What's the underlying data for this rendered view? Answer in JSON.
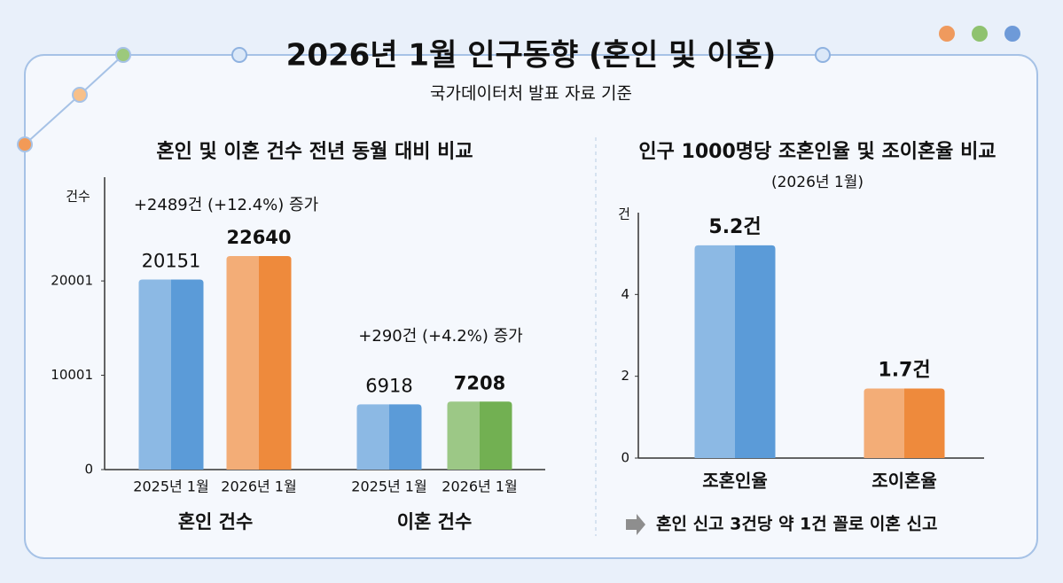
{
  "header": {
    "title": "2026년 1월 인구동향 (혼인 및 이혼)",
    "subtitle": "국가데이터처 발표 자료 기준"
  },
  "chart_data": [
    {
      "type": "bar",
      "title": "혼인 및 이혼 건수 전년 동월 대비 비교",
      "y_label": "건수",
      "categories": [
        "2025년 1월",
        "2026년 1월",
        "2025년 1월",
        "2026년 1월"
      ],
      "values": [
        20151,
        22640,
        6918,
        7208
      ],
      "colors": [
        "#5b9bd8",
        "#ee8a3c",
        "#5b9bd8",
        "#72b052"
      ],
      "groups": [
        "혼인 건수",
        "이혼 건수"
      ],
      "annotations": [
        "+2489건 (+12.4%) 증가",
        "+290건 (+4.2%) 증가"
      ],
      "ylim": [
        0,
        31000
      ],
      "yticks": [
        0,
        10001,
        20001
      ],
      "grid": false
    },
    {
      "type": "bar",
      "title": "인구 1000명당 조혼인율 및 조이혼율 비교",
      "subtitle": "(2026년 1월)",
      "y_label": "건",
      "categories": [
        "조혼인율",
        "조이혼율"
      ],
      "values": [
        5.2,
        1.7
      ],
      "value_labels": [
        "5.2건",
        "1.7건"
      ],
      "colors": [
        "#5b9bd8",
        "#ee8a3c"
      ],
      "ylim": [
        0,
        6
      ],
      "yticks": [
        0,
        2,
        4
      ],
      "grid": false,
      "note": "혼인 신고 3건당 약 1건 꼴로 이혼 신고"
    }
  ]
}
